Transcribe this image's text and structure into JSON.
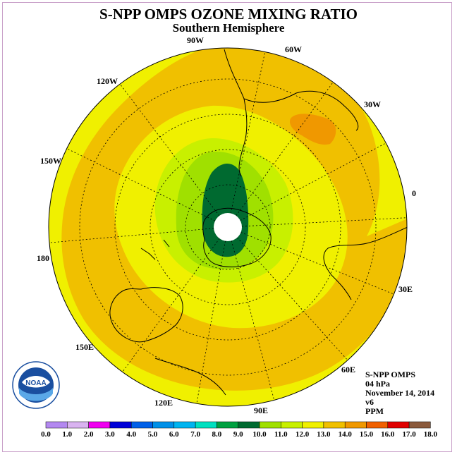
{
  "title": "S-NPP OMPS OZONE MIXING RATIO",
  "subtitle": "Southern Hemisphere",
  "longitude_labels": [
    "90W",
    "60W",
    "30W",
    "0",
    "30E",
    "60E",
    "90E",
    "120E",
    "150E",
    "180",
    "150W",
    "120W"
  ],
  "info": {
    "instrument": "S-NPP OMPS",
    "level": "04 hPa",
    "date": "November 14, 2014",
    "version": "v6",
    "units": "PPM"
  },
  "logo_text": "NOAA",
  "colorbar": {
    "ticks": [
      "0.0",
      "1.0",
      "2.0",
      "3.0",
      "4.0",
      "5.0",
      "6.0",
      "7.0",
      "8.0",
      "9.0",
      "10.0",
      "11.0",
      "12.0",
      "13.0",
      "14.0",
      "15.0",
      "16.0",
      "17.0",
      "18.0"
    ],
    "colors": [
      "#b388f0",
      "#d9b3f0",
      "#f000f0",
      "#0000d8",
      "#0060e8",
      "#0090e8",
      "#00b4f0",
      "#00e0c0",
      "#00a040",
      "#006a30",
      "#a0e000",
      "#c8f000",
      "#f0f000",
      "#f0c000",
      "#f09800",
      "#f06000",
      "#e00000",
      "#8b5a3c"
    ]
  },
  "field_colors": {
    "ring_orange": "#f0c000",
    "patch_dark_orange": "#f09800",
    "background_yellow": "#f0f000",
    "lime": "#c8f000",
    "light_green": "#a0e000",
    "dark_green": "#006a30"
  }
}
